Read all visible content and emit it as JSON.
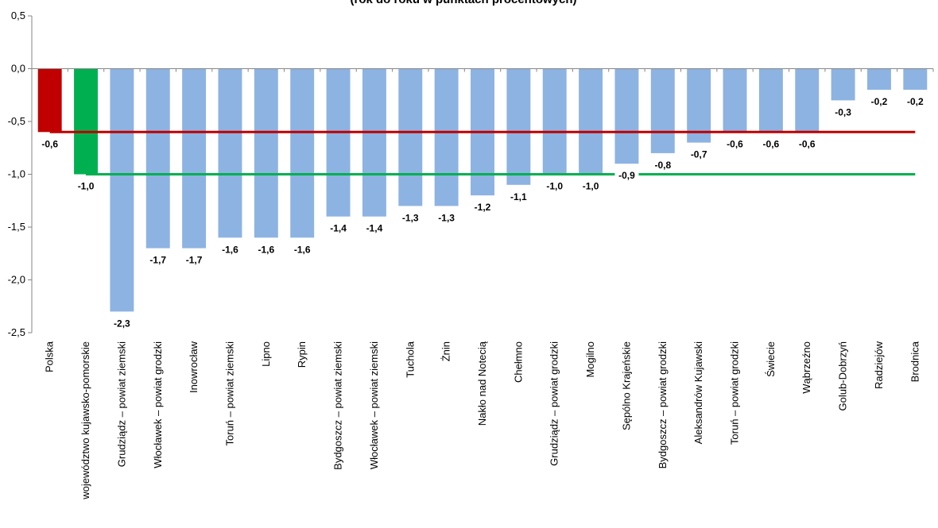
{
  "chart_data": {
    "type": "bar",
    "title": "(rok do roku w punktach procentowych)",
    "ylim": [
      -2.5,
      0.5
    ],
    "ytick_values": [
      0.5,
      0.0,
      -0.5,
      -1.0,
      -1.5,
      -2.0,
      -2.5
    ],
    "ytick_labels": [
      "0,5",
      "0,0",
      "-0,5",
      "-1,0",
      "-1,5",
      "-2,0",
      "-2,5"
    ],
    "grid": false,
    "categories": [
      "Polska",
      "województwo kujawsko-pomorskie",
      "Grudziądz – powiat ziemski",
      "Włocławek – powiat grodzki",
      "Inowrocław",
      "Toruń – powiat ziemski",
      "Lipno",
      "Rypin",
      "Bydgoszcz – powiat ziemski",
      "Włocławek – powiat ziemski",
      "Tuchola",
      "Żnin",
      "Nakło nad Notecią",
      "Chełmno",
      "Grudziądz – powiat grodzki",
      "Mogilno",
      "Sępólno Krajeńskie",
      "Bydgoszcz – powiat grodzki",
      "Aleksandrów Kujawski",
      "Toruń – powiat grodzki",
      "Świecie",
      "Wąbrzeźno",
      "Golub-Dobrzyń",
      "Radziejów",
      "Brodnica"
    ],
    "values": [
      -0.6,
      -1.0,
      -2.3,
      -1.7,
      -1.7,
      -1.6,
      -1.6,
      -1.6,
      -1.4,
      -1.4,
      -1.3,
      -1.3,
      -1.2,
      -1.1,
      -1.0,
      -1.0,
      -0.9,
      -0.8,
      -0.7,
      -0.6,
      -0.6,
      -0.6,
      -0.3,
      -0.2,
      -0.2
    ],
    "value_labels": [
      "-0,6",
      "-1,0",
      "-2,3",
      "-1,7",
      "-1,7",
      "-1,6",
      "-1,6",
      "-1,6",
      "-1,4",
      "-1,4",
      "-1,3",
      "-1,3",
      "-1,2",
      "-1,1",
      "-1,0",
      "-1,0",
      "-0,9",
      "-0,8",
      "-0,7",
      "-0,6",
      "-0,6",
      "-0,6",
      "-0,3",
      "-0,2",
      "-0,2"
    ],
    "bar_colors": [
      "#c00000",
      "#00b050",
      "#8db3e2",
      "#8db3e2",
      "#8db3e2",
      "#8db3e2",
      "#8db3e2",
      "#8db3e2",
      "#8db3e2",
      "#8db3e2",
      "#8db3e2",
      "#8db3e2",
      "#8db3e2",
      "#8db3e2",
      "#8db3e2",
      "#8db3e2",
      "#8db3e2",
      "#8db3e2",
      "#8db3e2",
      "#8db3e2",
      "#8db3e2",
      "#8db3e2",
      "#8db3e2",
      "#8db3e2",
      "#8db3e2"
    ],
    "reference_lines": [
      {
        "value": -0.6,
        "color": "#c00000"
      },
      {
        "value": -1.0,
        "color": "#00b050"
      }
    ]
  }
}
